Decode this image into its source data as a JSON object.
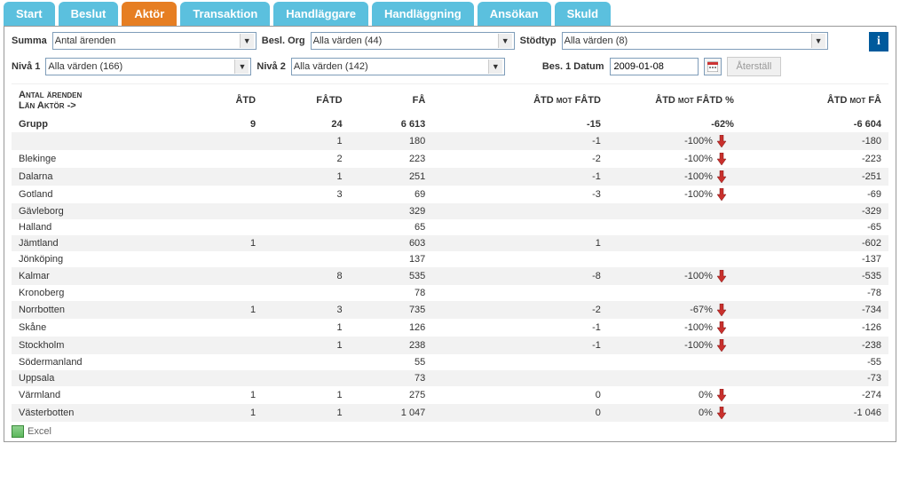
{
  "tabs": [
    "Start",
    "Beslut",
    "Aktör",
    "Transaktion",
    "Handläggare",
    "Handläggning",
    "Ansökan",
    "Skuld"
  ],
  "activeTab": 2,
  "filters": {
    "summa_label": "Summa",
    "summa_value": "Antal ärenden",
    "beslorg_label": "Besl. Org",
    "beslorg_value": "Alla värden (44)",
    "stodtyp_label": "Stödtyp",
    "stodtyp_value": "Alla värden (8)",
    "niva1_label": "Nivå 1",
    "niva1_value": "Alla värden (166)",
    "niva2_label": "Nivå 2",
    "niva2_value": "Alla värden (142)",
    "bes1_label": "Bes. 1 Datum",
    "bes1_value": "2009-01-08",
    "reset_label": "Återställ"
  },
  "table": {
    "header_left_line1": "Antal ärenden",
    "header_left_line2": "Län Aktör ->",
    "columns": [
      "ÅTD",
      "FÅTD",
      "FÅ",
      "ÅTD mot FÅTD",
      "ÅTD mot FÅTD %",
      "ÅTD mot FÅ"
    ],
    "total_label": "Grupp",
    "total": [
      "9",
      "24",
      "6 613",
      "-15",
      "-62%",
      "",
      "-6 604"
    ],
    "rows": [
      {
        "label": "",
        "atd": "",
        "fatd": "1",
        "fa": "180",
        "mot_fatd": "-1",
        "mot_fatd_pct": "-100%",
        "arrow": true,
        "mot_fa": "-180"
      },
      {
        "label": "Blekinge",
        "atd": "",
        "fatd": "2",
        "fa": "223",
        "mot_fatd": "-2",
        "mot_fatd_pct": "-100%",
        "arrow": true,
        "mot_fa": "-223"
      },
      {
        "label": "Dalarna",
        "atd": "",
        "fatd": "1",
        "fa": "251",
        "mot_fatd": "-1",
        "mot_fatd_pct": "-100%",
        "arrow": true,
        "mot_fa": "-251"
      },
      {
        "label": "Gotland",
        "atd": "",
        "fatd": "3",
        "fa": "69",
        "mot_fatd": "-3",
        "mot_fatd_pct": "-100%",
        "arrow": true,
        "mot_fa": "-69"
      },
      {
        "label": "Gävleborg",
        "atd": "",
        "fatd": "",
        "fa": "329",
        "mot_fatd": "",
        "mot_fatd_pct": "",
        "arrow": false,
        "mot_fa": "-329"
      },
      {
        "label": "Halland",
        "atd": "",
        "fatd": "",
        "fa": "65",
        "mot_fatd": "",
        "mot_fatd_pct": "",
        "arrow": false,
        "mot_fa": "-65"
      },
      {
        "label": "Jämtland",
        "atd": "1",
        "fatd": "",
        "fa": "603",
        "mot_fatd": "1",
        "mot_fatd_pct": "",
        "arrow": false,
        "mot_fa": "-602"
      },
      {
        "label": "Jönköping",
        "atd": "",
        "fatd": "",
        "fa": "137",
        "mot_fatd": "",
        "mot_fatd_pct": "",
        "arrow": false,
        "mot_fa": "-137"
      },
      {
        "label": "Kalmar",
        "atd": "",
        "fatd": "8",
        "fa": "535",
        "mot_fatd": "-8",
        "mot_fatd_pct": "-100%",
        "arrow": true,
        "mot_fa": "-535"
      },
      {
        "label": "Kronoberg",
        "atd": "",
        "fatd": "",
        "fa": "78",
        "mot_fatd": "",
        "mot_fatd_pct": "",
        "arrow": false,
        "mot_fa": "-78"
      },
      {
        "label": "Norrbotten",
        "atd": "1",
        "fatd": "3",
        "fa": "735",
        "mot_fatd": "-2",
        "mot_fatd_pct": "-67%",
        "arrow": true,
        "mot_fa": "-734"
      },
      {
        "label": "Skåne",
        "atd": "",
        "fatd": "1",
        "fa": "126",
        "mot_fatd": "-1",
        "mot_fatd_pct": "-100%",
        "arrow": true,
        "mot_fa": "-126"
      },
      {
        "label": "Stockholm",
        "atd": "",
        "fatd": "1",
        "fa": "238",
        "mot_fatd": "-1",
        "mot_fatd_pct": "-100%",
        "arrow": true,
        "mot_fa": "-238"
      },
      {
        "label": "Södermanland",
        "atd": "",
        "fatd": "",
        "fa": "55",
        "mot_fatd": "",
        "mot_fatd_pct": "",
        "arrow": false,
        "mot_fa": "-55"
      },
      {
        "label": "Uppsala",
        "atd": "",
        "fatd": "",
        "fa": "73",
        "mot_fatd": "",
        "mot_fatd_pct": "",
        "arrow": false,
        "mot_fa": "-73"
      },
      {
        "label": "Värmland",
        "atd": "1",
        "fatd": "1",
        "fa": "275",
        "mot_fatd": "0",
        "mot_fatd_pct": "0%",
        "arrow": true,
        "mot_fa": "-274"
      },
      {
        "label": "Västerbotten",
        "atd": "1",
        "fatd": "1",
        "fa": "1 047",
        "mot_fatd": "0",
        "mot_fatd_pct": "0%",
        "arrow": true,
        "mot_fa": "-1 046"
      }
    ]
  },
  "footer": {
    "excel_label": "Excel"
  },
  "colors": {
    "tab_bg": "#5bc0de",
    "tab_active_bg": "#e67e22",
    "info_bg": "#005a9c",
    "arrow_fill": "#c9302c"
  }
}
